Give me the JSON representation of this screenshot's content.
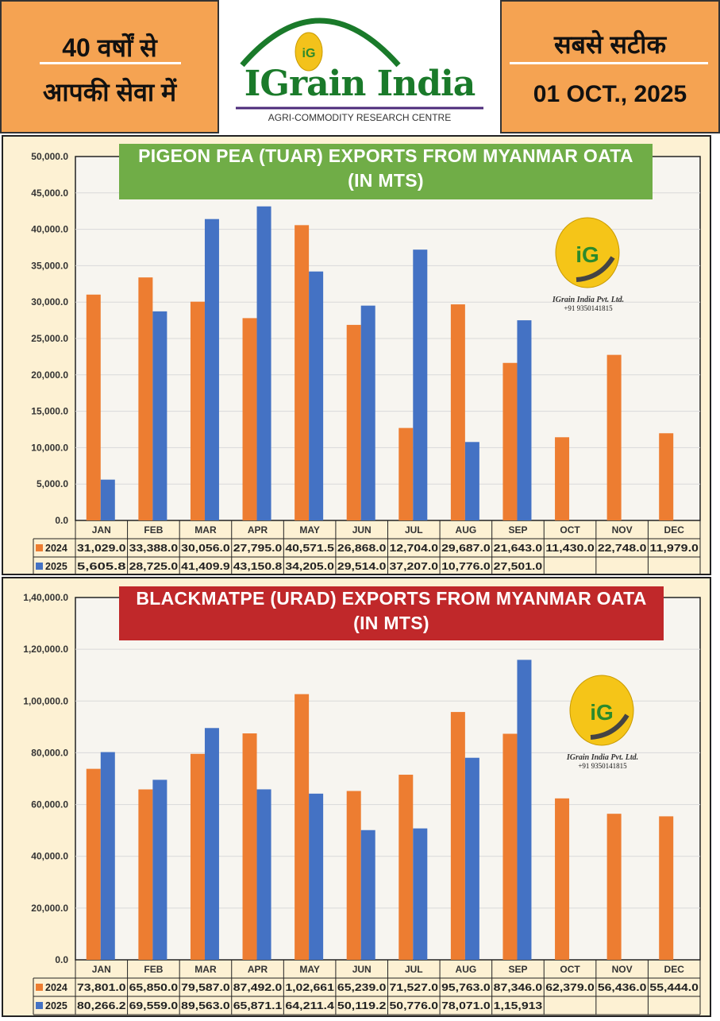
{
  "header": {
    "left_line1": "40 वर्षों से",
    "left_line2": "आपकी सेवा में",
    "brand": "IGrain India",
    "brand_sub": "AGRI-COMMODITY RESEARCH CENTRE",
    "logo_letters": "iG",
    "right_line1": "सबसे सटीक",
    "date": "01 OCT., 2025"
  },
  "watermark": {
    "company": "IGrain India Pvt. Ltd.",
    "phone": "+91 9350141815"
  },
  "colors": {
    "s2024": "#ED7D31",
    "s2025": "#4472C4",
    "title1_bg": "#70AD47",
    "title2_bg": "#C0282A"
  },
  "chart_data": [
    {
      "type": "bar",
      "title_line1": "PIGEON PEA (TUAR) EXPORTS FROM MYANMAR OATA",
      "title_line2": "(IN MTS)",
      "categories": [
        "JAN",
        "FEB",
        "MAR",
        "APR",
        "MAY",
        "JUN",
        "JUL",
        "AUG",
        "SEP",
        "OCT",
        "NOV",
        "DEC"
      ],
      "ylim": [
        0,
        50000
      ],
      "yticks": [
        0,
        5000,
        10000,
        15000,
        20000,
        25000,
        30000,
        35000,
        40000,
        45000,
        50000
      ],
      "ytick_labels": [
        "0.0",
        "5,000.0",
        "10,000.0",
        "15,000.0",
        "20,000.0",
        "25,000.0",
        "30,000.0",
        "35,000.0",
        "40,000.0",
        "45,000.0",
        "50,000.0"
      ],
      "grid": true,
      "legend": "data-table",
      "series": [
        {
          "name": "2024",
          "values": [
            31029,
            33388,
            30056,
            27795,
            40571.5,
            26868,
            12704,
            29687,
            21643,
            11430,
            22748,
            11979
          ],
          "labels": [
            "31,029.0",
            "33,388.0",
            "30,056.0",
            "27,795.0",
            "40,571.5",
            "26,868.0",
            "12,704.0",
            "29,687.0",
            "21,643.0",
            "11,430.0",
            "22,748.0",
            "11,979.0"
          ]
        },
        {
          "name": "2025",
          "values": [
            5605.8,
            28725,
            41409.9,
            43150.8,
            34205,
            29514,
            37207,
            10776,
            27501,
            null,
            null,
            null
          ],
          "labels": [
            "5,605.8",
            "28,725.0",
            "41,409.9",
            "43,150.8",
            "34,205.0",
            "29,514.0",
            "37,207.0",
            "10,776.0",
            "27,501.0",
            "",
            "",
            ""
          ]
        }
      ]
    },
    {
      "type": "bar",
      "title_line1": "BLACKMATPE (URAD) EXPORTS FROM MYANMAR OATA",
      "title_line2": "(IN MTS)",
      "categories": [
        "JAN",
        "FEB",
        "MAR",
        "APR",
        "MAY",
        "JUN",
        "JUL",
        "AUG",
        "SEP",
        "OCT",
        "NOV",
        "DEC"
      ],
      "ylim": [
        0,
        140000
      ],
      "yticks": [
        0,
        20000,
        40000,
        60000,
        80000,
        100000,
        120000,
        140000
      ],
      "ytick_labels": [
        "0.0",
        "20,000.0",
        "40,000.0",
        "60,000.0",
        "80,000.0",
        "1,00,000.0",
        "1,20,000.0",
        "1,40,000.0"
      ],
      "grid": true,
      "legend": "data-table",
      "series": [
        {
          "name": "2024",
          "values": [
            73801,
            65850,
            79587,
            87492,
            102661,
            65239,
            71527,
            95763,
            87346,
            62379,
            56436,
            55444
          ],
          "labels": [
            "73,801.0",
            "65,850.0",
            "79,587.0",
            "87,492.0",
            "1,02,661",
            "65,239.0",
            "71,527.0",
            "95,763.0",
            "87,346.0",
            "62,379.0",
            "56,436.0",
            "55,444.0"
          ]
        },
        {
          "name": "2025",
          "values": [
            80266.2,
            69559,
            89563,
            65871.1,
            64211.4,
            50119.2,
            50776,
            78071,
            115913,
            null,
            null,
            null
          ],
          "labels": [
            "80,266.2",
            "69,559.0",
            "89,563.0",
            "65,871.1",
            "64,211.4",
            "50,119.2",
            "50,776.0",
            "78,071.0",
            "1,15,913",
            "",
            "",
            ""
          ]
        }
      ]
    }
  ]
}
